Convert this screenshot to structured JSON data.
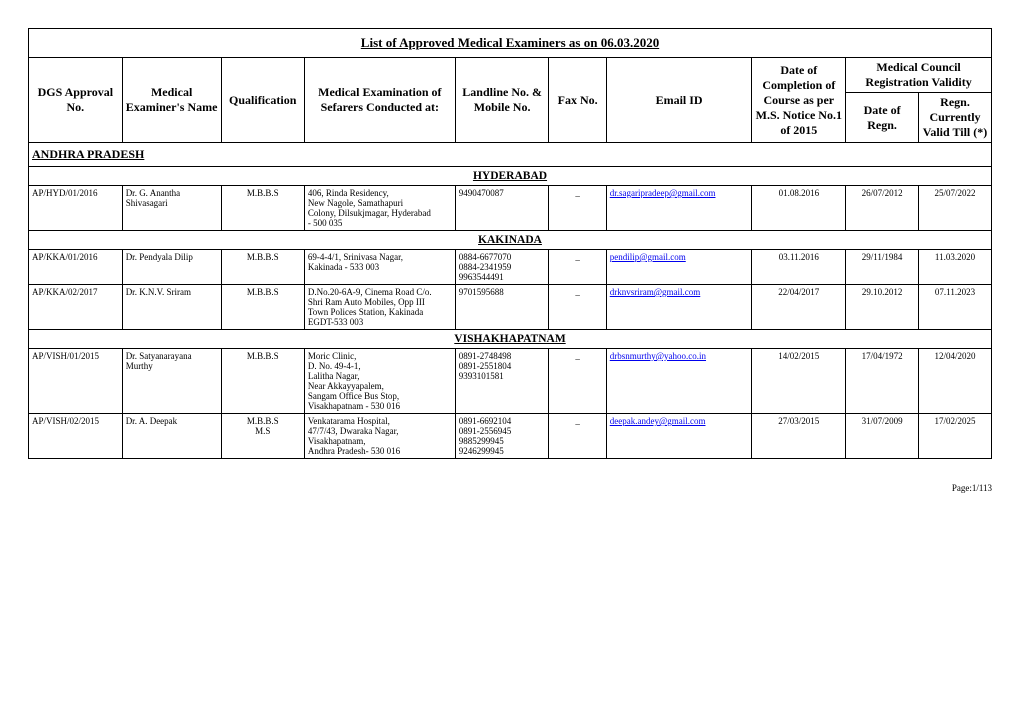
{
  "title": "List of Approved Medical Examiners as on 06.03.2020",
  "columns": {
    "dgs": "DGS Approval No.",
    "name": "Medical Examiner's Name",
    "qual": "Qualification",
    "exam": "Medical Examination of Sefarers Conducted at:",
    "landline": "Landline No. & Mobile No.",
    "fax": "Fax No.",
    "email": "Email ID",
    "date_course": "Date of Completion of Course as per M.S. Notice No.1 of 2015",
    "mc_validity": "Medical Council Registration Validity",
    "date_regn": "Date of Regn.",
    "regn_valid": "Regn. Currently Valid Till (*)"
  },
  "state": "ANDHRA PRADESH",
  "sections": [
    {
      "city": "HYDERABAD",
      "rows": [
        {
          "dgs": "AP/HYD/01/2016",
          "name": "Dr. G. Anantha Shivasagari",
          "qual": "M.B.B.S",
          "exam": "406, Rinda Residency,\nNew Nagole, Samathapuri\nColony, Dilsukjmagar, Hyderabad\n- 500 035",
          "landline": "9490470087",
          "fax": "_",
          "email": "dr.sagaripradeep@gmail.com",
          "date_course": "01.08.2016",
          "date_regn": "26/07/2012",
          "regn_valid": "25/07/2022"
        }
      ]
    },
    {
      "city": "KAKINADA",
      "rows": [
        {
          "dgs": "AP/KKA/01/2016",
          "name": "Dr. Pendyala Dilip",
          "qual": "M.B.B.S",
          "exam": "69-4-4/1, Srinivasa Nagar,\nKakinada - 533 003",
          "landline": "0884-6677070\n0884-2341959\n9963544491",
          "fax": "_",
          "email": "pendilip@gmail.com",
          "date_course": "03.11.2016",
          "date_regn": "29/11/1984",
          "regn_valid": "11.03.2020"
        },
        {
          "dgs": "AP/KKA/02/2017",
          "name": "Dr. K.N.V. Sriram",
          "qual": "M.B.B.S",
          "exam": "D.No.20-6A-9, Cinema Road C/o.\nShri Ram Auto Mobiles, Opp III\nTown Polices Station, Kakinada\nEGDT-533 003",
          "landline": "9701595688",
          "fax": "_",
          "email": "drknvsriram@gmail.com",
          "date_course": "22/04/2017",
          "date_regn": "29.10.2012",
          "regn_valid": "07.11.2023"
        }
      ]
    },
    {
      "city": "VISHAKHAPATNAM",
      "rows": [
        {
          "dgs": "AP/VISH/01/2015",
          "name": "Dr. Satyanarayana Murthy",
          "qual": "M.B.B.S",
          "exam": "Moric Clinic,\nD. No. 49-4-1,\nLalitha Nagar,\nNear Akkayyapalem,\nSangam Office Bus Stop,\nVisakhapatnam - 530 016",
          "landline": "0891-2748498\n0891-2551804\n9393101581",
          "fax": "_",
          "email": "drbsnmurthy@yahoo.co.in",
          "date_course": "14/02/2015",
          "date_regn": "17/04/1972",
          "regn_valid": "12/04/2020"
        },
        {
          "dgs": "AP/VISH/02/2015",
          "name": "Dr. A. Deepak",
          "qual": "M.B.B.S\nM.S",
          "exam": "Venkatarama Hospital,\n47/7/43, Dwaraka Nagar,\nVisakhapatnam,\nAndhra Pradesh- 530 016",
          "landline": "0891-6692104\n0891-2556945\n9885299945\n9246299945",
          "fax": "_",
          "email": "deepak.andey@gmail.com",
          "date_course": "27/03/2015",
          "date_regn": "31/07/2009",
          "regn_valid": "17/02/2025"
        }
      ]
    }
  ],
  "page_label": "Page:1/113"
}
